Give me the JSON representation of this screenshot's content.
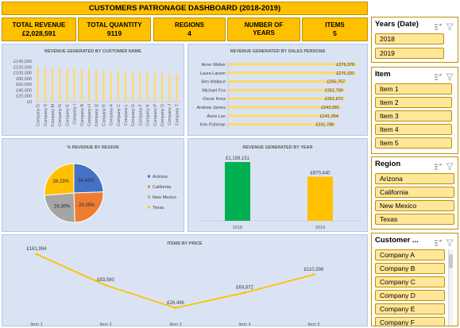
{
  "dashboard": {
    "title": "CUSTOMERS PATRONAGE DASHBOARD (2018-2019)"
  },
  "kpis": {
    "total_revenue_label": "TOTAL REVENUE",
    "total_revenue_value": "£2,028,591",
    "total_quantity_label": "TOTAL QUANTITY",
    "total_quantity_value": "9119",
    "regions_label": "REGIONS",
    "regions_value": "4",
    "years_label": "NUMBER OF YEARS",
    "items_label": "ITEMS",
    "items_value": "5"
  },
  "charts": {
    "customer_revenue": {
      "title": "REVENUE GENERATED BY CUSTOMER NAME",
      "y_ticks": [
        "£140,000",
        "£120,000",
        "£100,000",
        "£80,000",
        "£60,000",
        "£40,000",
        "£20,000",
        "£0"
      ]
    },
    "sales_persons": {
      "title": "REVENUE GENERATED BY SALES PERSONS"
    },
    "region_pie": {
      "title": "% REVENUE BY REGION"
    },
    "year": {
      "title": "REVENUE GENERATED BY YEAR"
    },
    "items": {
      "title": "ITEMS BY PRICE"
    }
  },
  "chart_data": [
    {
      "type": "bar",
      "title": "REVENUE GENERATED BY CUSTOMER NAME",
      "categories": [
        "Company D",
        "Company S",
        "Company M",
        "Company N",
        "Company E",
        "Company I",
        "Company B",
        "Company H",
        "Company Q",
        "Company R",
        "Company A",
        "Company C",
        "Company L",
        "Company G",
        "Company F",
        "Company K",
        "Company P",
        "Company O",
        "Company J",
        "Company T"
      ],
      "values": [
        122000,
        117000,
        116000,
        115000,
        114000,
        113000,
        112000,
        111000,
        110000,
        108000,
        107000,
        106000,
        105000,
        104000,
        103000,
        102000,
        101000,
        99000,
        97000,
        95000
      ],
      "ylim": [
        0,
        140000
      ],
      "color": "#ffd966"
    },
    {
      "type": "bar",
      "orientation": "horizontal",
      "title": "REVENUE GENERATED BY SALES PERSONS",
      "categories": [
        "Anne Weber",
        "Laura Larsen",
        "Ben Wallace",
        "Michael Fox",
        "Oscar Knox",
        "Andrew James",
        "Anne Lee",
        "Kim Fishman"
      ],
      "values": [
        276378,
        276331,
        255757,
        251790,
        251672,
        243681,
        241394,
        231788
      ],
      "labels": [
        "£276,378",
        "£276,331",
        "£255,757",
        "£251,790",
        "£251,672",
        "£243,681",
        "£241,394",
        "£231,788"
      ],
      "xlim": [
        0,
        300000
      ],
      "color": "#ffd966"
    },
    {
      "type": "pie",
      "title": "% REVENUE BY REGION",
      "categories": [
        "Arizona",
        "California",
        "New Mexico",
        "Texas"
      ],
      "values": [
        24.42,
        25.05,
        24.3,
        26.23
      ],
      "labels": [
        "24.42%",
        "25.05%",
        "24.30%",
        "26.23%"
      ],
      "colors": [
        "#4472c4",
        "#ed7d31",
        "#a5a5a5",
        "#ffc000"
      ],
      "legend": "right"
    },
    {
      "type": "bar",
      "title": "REVENUE GENERATED BY YEAR",
      "categories": [
        "2018",
        "2019"
      ],
      "values": [
        1158151,
        870440
      ],
      "labels": [
        "£1,158,151",
        "£870,440"
      ],
      "colors": [
        "#00b050",
        "#ffc000"
      ],
      "ylim": [
        0,
        1300000
      ]
    },
    {
      "type": "line",
      "title": "ITEMS BY PRICE",
      "categories": [
        "Item 1",
        "Item 2",
        "Item 3",
        "Item 4",
        "Item 5"
      ],
      "values": [
        161994,
        83580,
        26496,
        64872,
        110398
      ],
      "labels": [
        "£161,994",
        "£83,580",
        "£26,496",
        "£64,872",
        "£110,398"
      ],
      "color": "#ffc000",
      "ylim": [
        0,
        180000
      ]
    }
  ],
  "slicers": {
    "years": {
      "header": "Years (Date)",
      "items": [
        "2018",
        "2019"
      ]
    },
    "item": {
      "header": "Item",
      "items": [
        "Item 1",
        "Item 2",
        "Item 3",
        "Item 4",
        "Item 5"
      ]
    },
    "region": {
      "header": "Region",
      "items": [
        "Arizona",
        "California",
        "New Mexico",
        "Texas"
      ]
    },
    "customer": {
      "header": "Customer ...",
      "items": [
        "Company A",
        "Company B",
        "Company C",
        "Company D",
        "Company E",
        "Company F"
      ]
    }
  }
}
